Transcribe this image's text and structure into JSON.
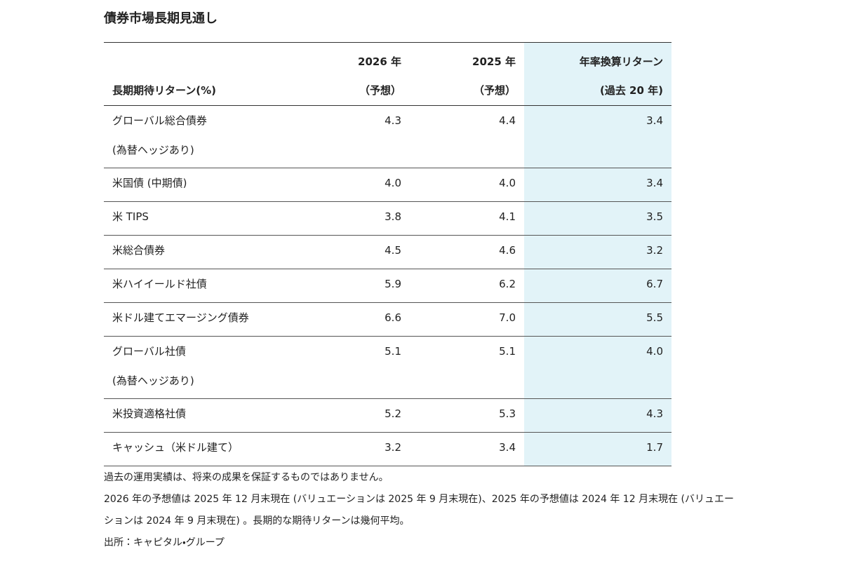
{
  "title": "債券市場長期見通し",
  "table": {
    "header": [
      {
        "lines": [
          "長期期待リターン(%)"
        ]
      },
      {
        "lines": [
          "2026 年",
          "（予想）"
        ]
      },
      {
        "lines": [
          "2025 年",
          "（予想）"
        ]
      },
      {
        "lines": [
          "年率換算リターン",
          "(過去 20 年)"
        ]
      }
    ],
    "rows": [
      {
        "label": [
          "グローバル総合債券",
          "(為替ヘッジあり)"
        ],
        "values": [
          "4.3",
          "4.4",
          "3.4"
        ]
      },
      {
        "label": [
          "米国債 (中期債)"
        ],
        "values": [
          "4.0",
          "4.0",
          "3.4"
        ]
      },
      {
        "label": [
          "米 TIPS"
        ],
        "values": [
          "3.8",
          "4.1",
          "3.5"
        ]
      },
      {
        "label": [
          "米総合債券"
        ],
        "values": [
          "4.5",
          "4.6",
          "3.2"
        ]
      },
      {
        "label": [
          "米ハイイールド社債"
        ],
        "values": [
          "5.9",
          "6.2",
          "6.7"
        ]
      },
      {
        "label": [
          "米ドル建てエマージング債券"
        ],
        "values": [
          "6.6",
          "7.0",
          "5.5"
        ]
      },
      {
        "label": [
          "グローバル社債",
          "(為替ヘッジあり)"
        ],
        "values": [
          "5.1",
          "5.1",
          "4.0"
        ]
      },
      {
        "label": [
          "米投資適格社債"
        ],
        "values": [
          "5.2",
          "5.3",
          "4.3"
        ]
      },
      {
        "label": [
          "キャッシュ（米ドル建て）"
        ],
        "values": [
          "3.2",
          "3.4",
          "1.7"
        ]
      }
    ]
  },
  "notes": [
    "過去の運用実績は、将来の成果を保証するものではありません。",
    "2026 年の予想値は 2025 年 12 月末現在 (バリュエーションは 2025 年 9 月末現在)、2025 年の予想値は 2024 年 12 月末現在 (バリュエーションは 2024 年 9 月末現在) 。長期的な期待リターンは幾何平均。",
    "出所：キャピタル・グループ"
  ]
}
